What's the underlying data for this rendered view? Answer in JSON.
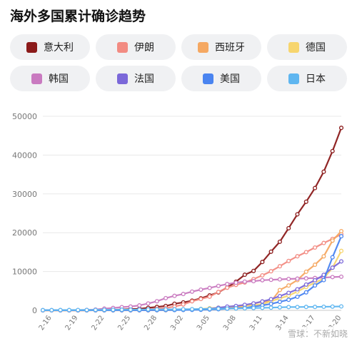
{
  "title": "海外多国累计确诊趋势",
  "watermark": "雪球：不新如晓",
  "chart_data": {
    "type": "line",
    "title": "海外多国累计确诊趋势",
    "xlabel": "",
    "ylabel": "",
    "ylim": [
      0,
      50000
    ],
    "yticks": [
      0,
      10000,
      20000,
      30000,
      40000,
      50000
    ],
    "grid": true,
    "legend_position": "top",
    "x": [
      "2-15",
      "2-16",
      "2-17",
      "2-18",
      "2-19",
      "2-20",
      "2-21",
      "2-22",
      "2-23",
      "2-24",
      "2-25",
      "2-26",
      "2-27",
      "2-28",
      "2-29",
      "3-01",
      "3-02",
      "3-03",
      "3-04",
      "3-05",
      "3-06",
      "3-07",
      "3-08",
      "3-09",
      "3-10",
      "3-11",
      "3-12",
      "3-13",
      "3-14",
      "3-15",
      "3-16",
      "3-17",
      "3-18",
      "3-19",
      "3-20"
    ],
    "xtick_labels": [
      "2-16",
      "2-19",
      "2-22",
      "2-25",
      "2-28",
      "3-02",
      "3-05",
      "3-08",
      "3-11",
      "3-14",
      "3-17",
      "3-20"
    ],
    "series": [
      {
        "name": "意大利",
        "color": "#8b1a1a",
        "values": [
          3,
          3,
          3,
          3,
          3,
          3,
          20,
          79,
          150,
          229,
          322,
          400,
          650,
          888,
          1128,
          1694,
          2036,
          2502,
          3089,
          3858,
          4636,
          5883,
          7375,
          9172,
          10149,
          12462,
          15113,
          17660,
          21157,
          24747,
          27980,
          31506,
          35713,
          41035,
          47021
        ]
      },
      {
        "name": "伊朗",
        "color": "#f28b82",
        "values": [
          0,
          0,
          0,
          0,
          2,
          5,
          18,
          28,
          43,
          61,
          95,
          139,
          245,
          388,
          593,
          978,
          1501,
          2336,
          2922,
          3513,
          4747,
          5823,
          6566,
          7161,
          8042,
          9000,
          10075,
          11364,
          12729,
          13938,
          14991,
          16169,
          17361,
          18407,
          19644
        ]
      },
      {
        "name": "西班牙",
        "color": "#f5a862",
        "values": [
          2,
          2,
          2,
          2,
          2,
          2,
          2,
          2,
          2,
          2,
          6,
          13,
          15,
          32,
          45,
          84,
          120,
          165,
          222,
          259,
          400,
          500,
          673,
          1073,
          1695,
          2277,
          2277,
          5232,
          6391,
          7798,
          9942,
          11748,
          13910,
          17963,
          20410
        ]
      },
      {
        "name": "德国",
        "color": "#f7d56e",
        "values": [
          16,
          16,
          16,
          16,
          16,
          16,
          16,
          16,
          16,
          16,
          18,
          26,
          53,
          66,
          117,
          150,
          188,
          240,
          349,
          534,
          684,
          847,
          1112,
          1139,
          1296,
          1567,
          2369,
          3062,
          3795,
          4838,
          6012,
          7156,
          8198,
          10999,
          15320
        ]
      },
      {
        "name": "韩国",
        "color": "#c97ac0",
        "values": [
          28,
          29,
          30,
          31,
          51,
          104,
          204,
          433,
          602,
          833,
          977,
          1261,
          1766,
          2337,
          3150,
          3736,
          4212,
          4812,
          5328,
          5766,
          6284,
          6767,
          7134,
          7382,
          7513,
          7755,
          7869,
          7979,
          8086,
          8162,
          8236,
          8320,
          8413,
          8565,
          8652
        ]
      },
      {
        "name": "法国",
        "color": "#7b68d9",
        "values": [
          12,
          12,
          12,
          12,
          12,
          12,
          12,
          12,
          12,
          12,
          14,
          18,
          38,
          57,
          100,
          130,
          191,
          204,
          285,
          377,
          653,
          949,
          1126,
          1412,
          1784,
          2281,
          2876,
          3661,
          4499,
          5423,
          6633,
          7730,
          9134,
          10995,
          12612
        ]
      },
      {
        "name": "美国",
        "color": "#4a84f0",
        "values": [
          15,
          15,
          15,
          15,
          15,
          15,
          35,
          35,
          35,
          53,
          53,
          59,
          60,
          62,
          70,
          76,
          101,
          122,
          153,
          221,
          278,
          417,
          537,
          605,
          959,
          1281,
          1663,
          2179,
          2726,
          3499,
          4632,
          6421,
          7786,
          13680,
          19101
        ]
      },
      {
        "name": "日本",
        "color": "#5fb6f0",
        "values": [
          53,
          59,
          66,
          74,
          84,
          94,
          105,
          122,
          147,
          159,
          170,
          189,
          214,
          228,
          241,
          256,
          274,
          293,
          331,
          360,
          420,
          461,
          502,
          530,
          581,
          639,
          701,
          773,
          839,
          839,
          878,
          889,
          924,
          963,
          1007
        ]
      }
    ]
  }
}
